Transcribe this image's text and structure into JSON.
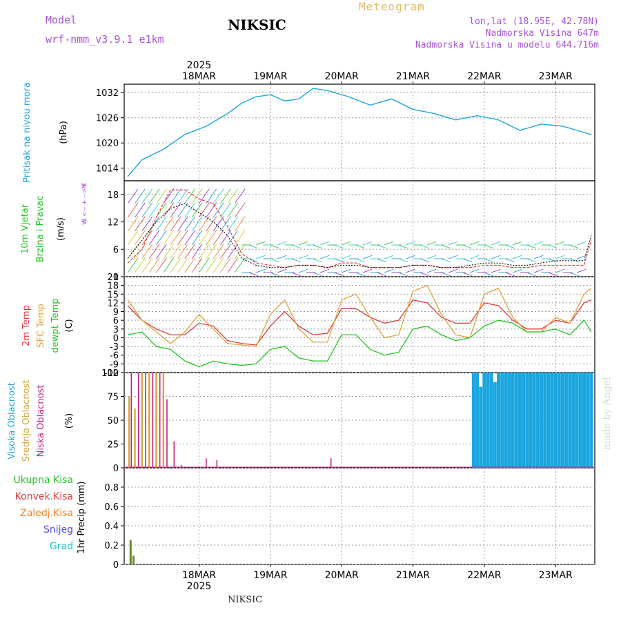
{
  "header": {
    "model_label": "Model",
    "model_name": "wrf-nmm_v3.9.1 e1km",
    "product": "Meteogram",
    "station": "NIKSIC",
    "coords": "lon,lat (18.95E, 42.78N)",
    "elevation": "Nadmorska Visina 647m",
    "model_elevation": "Nadmorska Visina u modelu 644.716m"
  },
  "footer": {
    "station": "NIKSIC",
    "credit": "made by Angel"
  },
  "time_axis": {
    "year": "2025",
    "days": [
      "18MAR",
      "19MAR",
      "20MAR",
      "21MAR",
      "22MAR",
      "23MAR"
    ],
    "day_positions": [
      0.5,
      1.5,
      2.5,
      3.5,
      4.5,
      5.5
    ],
    "range": [
      0,
      6
    ],
    "grid_vlines": [
      0,
      1,
      2,
      3,
      4,
      5,
      6
    ]
  },
  "colors": {
    "pressure": "#1ca6e0",
    "temp2m": "#e03c3c",
    "sfc_temp": "#e0a23c",
    "dewpoint": "#22c422",
    "high_cloud": "#1ca6e0",
    "mid_cloud": "#d4a640",
    "low_cloud": "#c8207e",
    "precip": "#6a8a2a"
  },
  "chart_data": [
    {
      "type": "line",
      "panel": "pressure",
      "ylabel_lines": [
        "Pritisak na nivou mora",
        "(hPa)"
      ],
      "ylim": [
        1011,
        1034
      ],
      "yticks": [
        1014,
        1020,
        1026,
        1032
      ],
      "series": [
        {
          "x": [
            -0.5,
            -0.3,
            0,
            0.3,
            0.6,
            0.9,
            1.1,
            1.3,
            1.5,
            1.7,
            1.9,
            2.1,
            2.3,
            2.6,
            2.9,
            3.2,
            3.5,
            3.8,
            4.1,
            4.4,
            4.7,
            5.0,
            5.3,
            5.6,
            5.9,
            6.0
          ],
          "y": [
            1012,
            1016,
            1018.5,
            1022,
            1024,
            1027,
            1029.5,
            1031,
            1031.5,
            1030,
            1030.5,
            1033,
            1032.5,
            1031,
            1029,
            1030.5,
            1028,
            1027,
            1025.5,
            1026.5,
            1025.5,
            1023,
            1024.5,
            1024,
            1022.5,
            1022
          ]
        }
      ]
    },
    {
      "type": "line",
      "panel": "wind",
      "ylabel_lines": [
        "10m Vjetar",
        "Brzina i Pravac",
        "(m/s)"
      ],
      "compass": [
        "N",
        "^",
        "|",
        "W  <-- + -->  E",
        "|",
        "v",
        "S"
      ],
      "ylim": [
        0,
        21
      ],
      "yticks": [
        0,
        6,
        12,
        18
      ],
      "series": [
        {
          "name": "speed",
          "x": [
            -0.5,
            -0.3,
            -0.1,
            0.1,
            0.3,
            0.5,
            0.7,
            0.9,
            1.1,
            1.3,
            1.5,
            1.7,
            1.9,
            2.1,
            2.3,
            2.5,
            2.7,
            2.9,
            3.1,
            3.3,
            3.5,
            3.7,
            3.9,
            4.1,
            4.3,
            4.5,
            4.7,
            4.9,
            5.1,
            5.3,
            5.5,
            5.7,
            5.9,
            6.0
          ],
          "y": [
            4,
            8,
            12,
            15,
            16,
            14,
            12,
            9,
            4,
            2.5,
            2,
            2,
            2.5,
            2.5,
            2,
            2.5,
            2.5,
            2,
            2,
            2,
            2.5,
            2.5,
            2,
            2,
            2.5,
            3,
            3,
            2.5,
            2.5,
            3,
            3.5,
            3.5,
            3.5,
            9
          ]
        },
        {
          "name": "gust",
          "x": [
            -0.5,
            -0.3,
            -0.1,
            0.1,
            0.3,
            0.5,
            0.7,
            0.9,
            1.1,
            1.3,
            1.5,
            1.7,
            1.9,
            2.1,
            2.3,
            2.5,
            2.7,
            2.9,
            3.1,
            3.3,
            3.5,
            3.7,
            3.9,
            4.1,
            4.3,
            4.5,
            4.7,
            4.9,
            5.1,
            5.3,
            5.5,
            5.7,
            5.9,
            6.0
          ],
          "y": [
            3,
            6,
            13,
            19,
            19,
            17,
            16,
            11,
            5,
            3,
            2.5,
            2,
            2.5,
            2.5,
            2,
            3,
            3,
            2,
            2,
            2,
            2.5,
            2.5,
            2,
            2,
            2,
            2.5,
            2.5,
            2,
            2,
            2.5,
            2.5,
            2.5,
            2.5,
            8
          ]
        }
      ]
    },
    {
      "type": "line",
      "panel": "temperature",
      "ylabel_lines": [
        "2m Temp",
        "SFC Temp",
        "dewpt Temp",
        "(C)"
      ],
      "ylim": [
        -12,
        21
      ],
      "yticks": [
        -12,
        -9,
        -6,
        -3,
        0,
        3,
        6,
        9,
        12,
        15,
        18,
        21
      ],
      "series": [
        {
          "name": "2m Temp",
          "x": [
            -0.5,
            -0.3,
            -0.1,
            0.1,
            0.3,
            0.5,
            0.7,
            0.9,
            1.1,
            1.3,
            1.5,
            1.7,
            1.9,
            2.1,
            2.3,
            2.5,
            2.7,
            2.9,
            3.1,
            3.3,
            3.5,
            3.7,
            3.9,
            4.1,
            4.3,
            4.5,
            4.7,
            4.9,
            5.1,
            5.3,
            5.5,
            5.7,
            5.9,
            6.0
          ],
          "y": [
            11,
            6,
            3,
            1,
            1,
            5,
            4,
            -1,
            -2,
            -2.5,
            4,
            9,
            4,
            1,
            1.5,
            10,
            10,
            7,
            5,
            6,
            13,
            12,
            7,
            5,
            5,
            12,
            11,
            6,
            3,
            3,
            6,
            5,
            12,
            13
          ]
        },
        {
          "name": "SFC Temp",
          "x": [
            -0.5,
            -0.3,
            -0.1,
            0.1,
            0.3,
            0.5,
            0.7,
            0.9,
            1.1,
            1.3,
            1.5,
            1.7,
            1.9,
            2.1,
            2.3,
            2.5,
            2.7,
            2.9,
            3.1,
            3.3,
            3.5,
            3.7,
            3.9,
            4.1,
            4.3,
            4.5,
            4.7,
            4.9,
            5.1,
            5.3,
            5.5,
            5.7,
            5.9,
            6.0
          ],
          "y": [
            13,
            6,
            2,
            -2,
            2,
            8,
            3,
            -2,
            -2.5,
            -3,
            8,
            13,
            3,
            -1.5,
            -1.5,
            13,
            15,
            7,
            0,
            1,
            16,
            18,
            8,
            1,
            0,
            15,
            17,
            7,
            2,
            2,
            7,
            5,
            15,
            17
          ]
        },
        {
          "name": "dewpt Temp",
          "x": [
            -0.5,
            -0.3,
            -0.1,
            0.1,
            0.3,
            0.5,
            0.7,
            0.9,
            1.1,
            1.3,
            1.5,
            1.7,
            1.9,
            2.1,
            2.3,
            2.5,
            2.7,
            2.9,
            3.1,
            3.3,
            3.5,
            3.7,
            3.9,
            4.1,
            4.3,
            4.5,
            4.7,
            4.9,
            5.1,
            5.3,
            5.5,
            5.7,
            5.9,
            6.0
          ],
          "y": [
            1,
            2,
            -3,
            -4,
            -8,
            -10,
            -8,
            -9,
            -9.5,
            -9,
            -4,
            -3,
            -7,
            -8,
            -8,
            1,
            1,
            -4,
            -6,
            -5,
            3,
            4,
            1,
            -1,
            0,
            4,
            6,
            5,
            2,
            2,
            3,
            1,
            6,
            2
          ]
        }
      ]
    },
    {
      "type": "bar",
      "panel": "cloud",
      "ylabel_lines": [
        "Visoka Oblacnost",
        "Srednja Oblacnost",
        "Niska Oblacnost",
        "(%)"
      ],
      "ylim": [
        0,
        100
      ],
      "yticks": [
        0,
        25,
        50,
        75,
        100
      ],
      "series": [
        {
          "name": "Niska Oblacnost",
          "x": [
            -0.45,
            -0.35,
            -0.25,
            -0.15,
            -0.05,
            0.05,
            0.15,
            0.25,
            0.6,
            0.75,
            2.35
          ],
          "y": [
            100,
            100,
            100,
            100,
            100,
            72,
            28,
            3,
            10,
            8,
            10
          ]
        },
        {
          "name": "Srednja Oblacnost",
          "x": [
            -0.48,
            -0.4,
            -0.3,
            -0.2,
            -0.1,
            0.0,
            5.2,
            5.3,
            5.4,
            5.6,
            5.7,
            5.8,
            5.9
          ],
          "y": [
            75,
            62,
            100,
            100,
            100,
            100,
            100,
            100,
            100,
            100,
            100,
            100,
            100
          ]
        },
        {
          "name": "Visoka Oblacnost",
          "x": [
            4.35,
            4.4,
            4.45,
            4.5,
            4.55,
            4.6,
            4.65,
            4.7,
            4.75,
            4.8,
            4.85,
            4.9,
            4.95,
            5.0,
            5.05,
            5.1,
            5.15,
            5.2,
            5.25,
            5.3,
            5.35,
            5.4,
            5.45,
            5.5,
            5.55,
            5.6,
            5.65,
            5.7,
            5.75,
            5.8,
            5.85,
            5.9,
            5.95,
            6.0
          ],
          "y": [
            100,
            100,
            85,
            100,
            100,
            100,
            90,
            100,
            100,
            100,
            100,
            100,
            100,
            100,
            100,
            100,
            100,
            100,
            100,
            100,
            100,
            100,
            100,
            100,
            100,
            100,
            100,
            100,
            100,
            100,
            100,
            100,
            100,
            100
          ]
        }
      ]
    },
    {
      "type": "bar",
      "panel": "precip",
      "ylabel_lines": [
        "1hr Precip (mm)"
      ],
      "legend_labels": [
        "Ukupna Kisa",
        "Konvek.Kisa",
        "Zaledj.Kisa",
        "Snijeg",
        "Grad"
      ],
      "ylim": [
        0,
        1
      ],
      "yticks": [
        0,
        0.2,
        0.4,
        0.6,
        0.8
      ],
      "series": [
        {
          "name": "Ukupna Kisa",
          "x": [
            -0.46,
            -0.42
          ],
          "y": [
            0.25,
            0.09
          ]
        }
      ]
    }
  ]
}
